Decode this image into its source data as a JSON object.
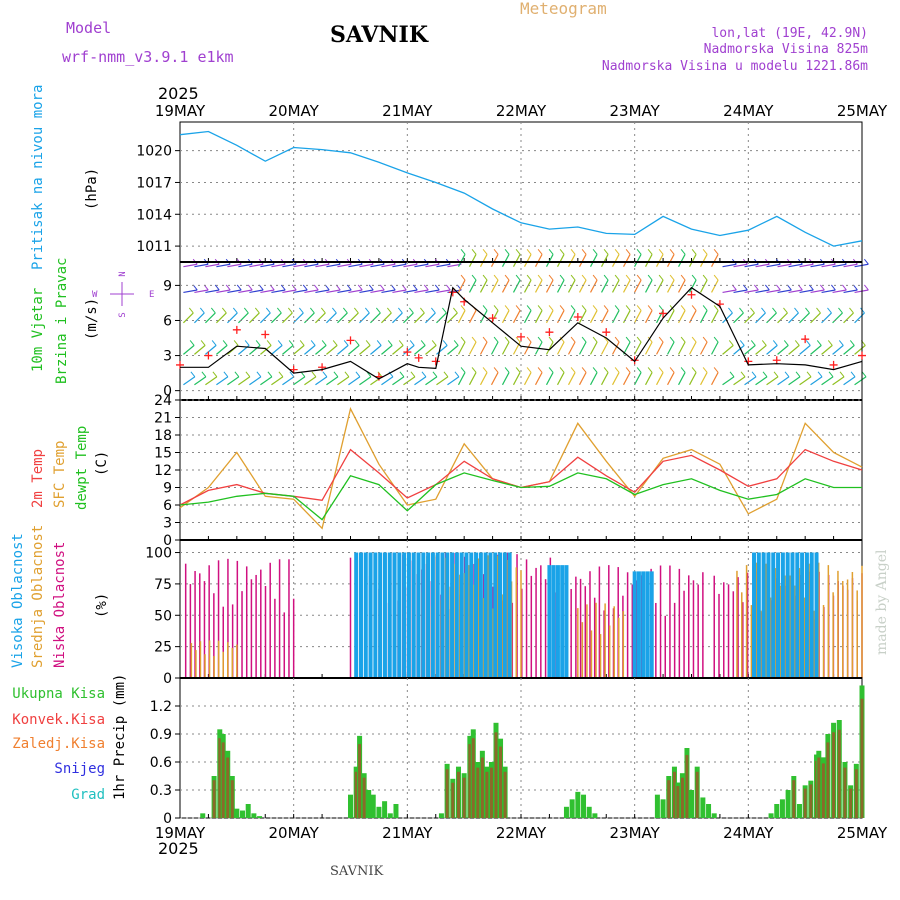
{
  "header": {
    "model_label": "Model",
    "model_name": "wrf-nmm_v3.9.1 e1km",
    "station": "SAVNIK",
    "meteogram": "Meteogram",
    "lonlat": "lon,lat (19E, 42.9N)",
    "elevation": "Nadmorska Visina 825m",
    "model_elevation": "Nadmorska Visina u modelu 1221.86m",
    "year": "2025",
    "footer_station": "SAVNIK",
    "credit": "made by Angel"
  },
  "colors": {
    "pressure": "#1aa3e8",
    "wind_speed": "#000000",
    "gust": "#ff2020",
    "temp2m": "#f04040",
    "sfc_temp": "#e0a030",
    "dewpt": "#20c020",
    "high_cloud": "#1aa3e8",
    "mid_cloud": "#e0a030",
    "low_cloud": "#d01080",
    "total_precip": "#30c030",
    "conv_precip": "#f04040",
    "freezing": "#f08030",
    "snow": "#3030e0",
    "hail": "#20c0c0",
    "grid": "#888888"
  },
  "chart_data": [
    {
      "type": "line",
      "panel": "pressure",
      "ylabel_main": "Pritisak na nivou mora",
      "ylabel_unit": "(hPa)",
      "x_range": [
        0,
        6
      ],
      "x_ticks": [
        "19MAY",
        "20MAY",
        "21MAY",
        "22MAY",
        "23MAY",
        "24MAY",
        "25MAY"
      ],
      "ylim": [
        1009.5,
        1022.7
      ],
      "yticks": [
        1011,
        1014,
        1017,
        1020
      ],
      "grid": true,
      "series": [
        {
          "x": [
            0,
            0.25,
            0.5,
            0.75,
            1,
            1.25,
            1.5,
            1.75,
            2,
            2.25,
            2.5,
            2.75,
            3,
            3.25,
            3.5,
            3.75,
            4,
            4.25,
            4.5,
            4.75,
            5,
            5.25,
            5.5,
            5.75,
            6
          ],
          "values": [
            1021.5,
            1021.8,
            1020.5,
            1019,
            1020.3,
            1020.1,
            1019.8,
            1018.9,
            1017.9,
            1017,
            1016,
            1014.5,
            1013.2,
            1012.6,
            1012.8,
            1012.2,
            1012.1,
            1013.8,
            1012.6,
            1012,
            1012.5,
            1013.8,
            1012.3,
            1011,
            1011.5
          ]
        }
      ]
    },
    {
      "type": "line",
      "panel": "wind",
      "ylabel_main": "10m Vjetar",
      "ylabel_sub": "Brzina i Pravac",
      "ylabel_unit": "(m/s)",
      "compass": [
        "N",
        "W",
        "E",
        "S"
      ],
      "x_range": [
        0,
        6
      ],
      "ylim": [
        -0.8,
        11
      ],
      "yticks": [
        0,
        3,
        6,
        9
      ],
      "grid": true,
      "series": [
        {
          "name": "speed",
          "x": [
            0,
            0.25,
            0.5,
            0.75,
            1,
            1.25,
            1.5,
            1.75,
            2,
            2.1,
            2.25,
            2.4,
            2.5,
            2.75,
            3,
            3.25,
            3.5,
            3.75,
            4,
            4.25,
            4.5,
            4.75,
            5,
            5.25,
            5.5,
            5.75,
            6
          ],
          "values": [
            2,
            2,
            3.8,
            3.6,
            1.5,
            1.8,
            2.5,
            1,
            2.3,
            2,
            1.9,
            8.8,
            7.8,
            5.8,
            3.8,
            3.5,
            5.8,
            4.5,
            2.5,
            6.2,
            8.8,
            7.2,
            2.2,
            2.3,
            2.2,
            1.8,
            2.5
          ]
        },
        {
          "name": "gust",
          "x": [
            0,
            0.25,
            0.5,
            0.75,
            1,
            1.25,
            1.5,
            1.75,
            2,
            2.1,
            2.25,
            2.4,
            2.5,
            2.75,
            3,
            3.25,
            3.5,
            3.75,
            4,
            4.25,
            4.5,
            4.75,
            5,
            5.25,
            5.5,
            5.75,
            6
          ],
          "values": [
            2.2,
            3,
            5.2,
            4.8,
            1.8,
            2,
            4.3,
            1.2,
            3.3,
            2.8,
            2.5,
            8.4,
            7.6,
            6.2,
            4.6,
            5,
            6.3,
            5,
            2.6,
            6.6,
            8.2,
            7.4,
            2.5,
            2.6,
            4.4,
            2.2,
            3
          ]
        }
      ],
      "barb_rows": [
        0.5,
        3.1,
        5.8,
        8.4,
        10.6
      ]
    },
    {
      "type": "line",
      "panel": "temperature",
      "ylabel_parts": [
        "2m Temp",
        "SFC Temp",
        "dewpt Temp"
      ],
      "ylabel_unit": "(C)",
      "x_range": [
        0,
        6
      ],
      "ylim": [
        0,
        24
      ],
      "yticks": [
        0,
        3,
        6,
        9,
        12,
        15,
        18,
        21,
        24
      ],
      "grid": true,
      "series": [
        {
          "name": "2m Temp",
          "x": [
            0,
            0.25,
            0.5,
            0.75,
            1,
            1.25,
            1.5,
            1.75,
            2,
            2.25,
            2.5,
            2.75,
            3,
            3.25,
            3.5,
            3.75,
            4,
            4.25,
            4.5,
            4.75,
            5,
            5.25,
            5.5,
            5.75,
            6
          ],
          "values": [
            6,
            8.5,
            9.5,
            8,
            7.5,
            6.8,
            15.5,
            11.5,
            7.2,
            9.5,
            13.5,
            10.5,
            9,
            10,
            14.2,
            11,
            8.2,
            13.5,
            14.5,
            12,
            9.2,
            10.5,
            15.5,
            13.5,
            12
          ]
        },
        {
          "name": "SFC Temp",
          "x": [
            0,
            0.25,
            0.5,
            0.75,
            1,
            1.25,
            1.5,
            1.75,
            2,
            2.25,
            2.5,
            2.75,
            3,
            3.25,
            3.5,
            3.75,
            4,
            4.25,
            4.5,
            4.75,
            5,
            5.25,
            5.5,
            5.75,
            6
          ],
          "values": [
            5.5,
            9,
            15,
            7.5,
            7,
            2,
            22.5,
            13,
            6,
            7,
            16.5,
            10.5,
            9,
            10,
            20,
            13.5,
            7.5,
            14,
            15.5,
            13,
            4.5,
            7,
            20,
            15,
            12.5
          ]
        },
        {
          "name": "dewpt Temp",
          "x": [
            0,
            0.25,
            0.5,
            0.75,
            1,
            1.25,
            1.5,
            1.75,
            2,
            2.25,
            2.5,
            2.75,
            3,
            3.25,
            3.5,
            3.75,
            4,
            4.25,
            4.5,
            4.75,
            5,
            5.25,
            5.5,
            5.75,
            6
          ],
          "values": [
            6,
            6.5,
            7.5,
            8,
            7.5,
            3.5,
            11,
            9.5,
            5,
            9.5,
            11.5,
            10.2,
            9,
            9.2,
            11.5,
            10.5,
            7.8,
            9.5,
            10.5,
            8.5,
            7,
            7.8,
            10.5,
            9,
            9
          ]
        }
      ]
    },
    {
      "type": "bar",
      "panel": "cloud",
      "ylabel_parts": [
        "Visoka Oblacnost",
        "Srednja Oblacnost",
        "Niska Oblacnost"
      ],
      "ylabel_unit": "(%)",
      "x_range": [
        0,
        6
      ],
      "ylim": [
        0,
        110
      ],
      "yticks": [
        0,
        25,
        50,
        75,
        100
      ],
      "grid": true,
      "series": [
        {
          "name": "Visoka Oblacnost",
          "spans": [
            [
              1.55,
              2.9,
              100
            ],
            [
              3.25,
              3.4,
              90
            ],
            [
              4.0,
              4.15,
              85
            ],
            [
              5.05,
              5.6,
              100
            ]
          ]
        },
        {
          "name": "Srednja Oblacnost",
          "spans": [
            [
              0.1,
              0.5,
              30
            ],
            [
              1.55,
              3.0,
              98
            ],
            [
              3.5,
              3.9,
              60
            ],
            [
              4.9,
              6.0,
              92
            ]
          ]
        },
        {
          "name": "Niska Oblacnost",
          "spans": [
            [
              0.05,
              1.0,
              95
            ],
            [
              1.5,
              3.3,
              100
            ],
            [
              3.4,
              4.6,
              90
            ],
            [
              4.7,
              6.0,
              85
            ]
          ]
        }
      ]
    },
    {
      "type": "bar",
      "panel": "precip",
      "ylabel_unit": "1hr Precip (mm)",
      "legend": [
        "Ukupna Kisa",
        "Konvek.Kisa",
        "Zaledj.Kisa",
        "Snijeg",
        "Grad"
      ],
      "x_range": [
        0,
        6
      ],
      "ylim": [
        0,
        1.5
      ],
      "yticks": [
        0,
        0.3,
        0.6,
        0.9,
        1.2
      ],
      "grid": true,
      "series": [
        {
          "name": "Ukupna Kisa",
          "x": [
            0.2,
            0.3,
            0.35,
            0.38,
            0.42,
            0.46,
            0.5,
            0.55,
            0.6,
            0.65,
            0.7,
            1.5,
            1.55,
            1.58,
            1.62,
            1.66,
            1.7,
            1.75,
            1.8,
            1.85,
            1.9,
            2.3,
            2.35,
            2.4,
            2.45,
            2.5,
            2.55,
            2.58,
            2.62,
            2.66,
            2.7,
            2.74,
            2.78,
            2.82,
            2.86,
            3.4,
            3.45,
            3.5,
            3.55,
            3.6,
            3.65,
            4.2,
            4.25,
            4.3,
            4.35,
            4.38,
            4.42,
            4.46,
            4.5,
            4.55,
            4.6,
            4.65,
            4.7,
            5.2,
            5.25,
            5.3,
            5.35,
            5.4,
            5.45,
            5.5,
            5.55,
            5.6,
            5.62,
            5.66,
            5.7,
            5.75,
            5.8,
            5.85,
            5.9,
            5.95,
            6.0
          ],
          "values": [
            0.05,
            0.45,
            0.95,
            0.9,
            0.72,
            0.45,
            0.1,
            0.08,
            0.15,
            0.05,
            0.02,
            0.25,
            0.55,
            0.88,
            0.48,
            0.3,
            0.25,
            0.12,
            0.18,
            0.05,
            0.15,
            0.05,
            0.58,
            0.42,
            0.55,
            0.48,
            0.88,
            0.95,
            0.6,
            0.72,
            0.55,
            0.6,
            1.02,
            0.85,
            0.55,
            0.12,
            0.2,
            0.28,
            0.25,
            0.12,
            0.05,
            0.25,
            0.2,
            0.45,
            0.55,
            0.38,
            0.48,
            0.75,
            0.3,
            0.55,
            0.22,
            0.15,
            0.05,
            0.05,
            0.15,
            0.2,
            0.3,
            0.45,
            0.15,
            0.35,
            0.4,
            0.68,
            0.72,
            0.65,
            0.9,
            1.02,
            1.05,
            0.6,
            0.35,
            0.58,
            1.42
          ]
        }
      ]
    }
  ]
}
